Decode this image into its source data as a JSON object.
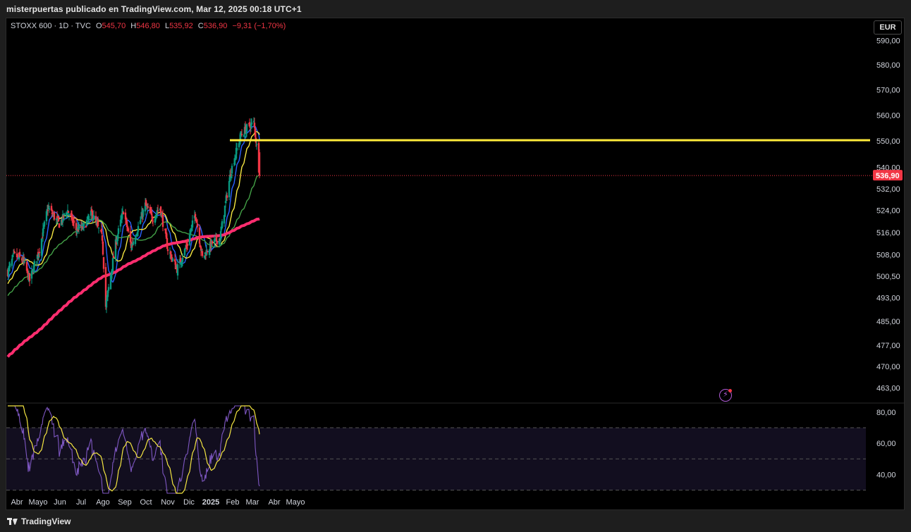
{
  "header": {
    "caption": "misterpuertas publicado en TradingView.com, Mar 12, 2025 00:18 UTC+1"
  },
  "legend": {
    "symbol": "STOXX 600 · 1D · TVC",
    "o_label": "O",
    "o_value": "545,70",
    "h_label": "H",
    "h_value": "546,80",
    "l_label": "L",
    "l_value": "535,92",
    "c_label": "C",
    "c_value": "536,90",
    "change": "−9,31 (−1,70%)"
  },
  "currency_button": "EUR",
  "footer": {
    "brand": "TradingView"
  },
  "flash_icon": "lightning-icon",
  "colors": {
    "up": "#089981",
    "down": "#f23645",
    "ma_fast": "#2962ff",
    "ma_mid": "#f5e642",
    "ma_slow": "#43a047",
    "ma_long": "#ff2d6f",
    "resistance": "#ffeb3b",
    "rsi": "#7e57c2",
    "rsi_ma": "#f5e642"
  },
  "chart_data": [
    {
      "type": "candlestick",
      "title": "",
      "x_axis_labels": [
        "Abr",
        "Mayo",
        "Jun",
        "Jul",
        "Ago",
        "Sep",
        "Oct",
        "Nov",
        "Dic",
        "2025",
        "Feb",
        "Mar",
        "Abr",
        "Mayo"
      ],
      "y_axis_labels": [
        "590,00",
        "580,00",
        "570,00",
        "560,00",
        "550,00",
        "540,00",
        "532,00",
        "524,00",
        "516,00",
        "508,00",
        "500,50",
        "493,00",
        "485,00",
        "477,00",
        "470,00",
        "463,00"
      ],
      "y_scale": "log",
      "ylim": [
        459,
        593
      ],
      "last_price_label": "536,90",
      "last_price": 536.9,
      "resistance_level": 550.3,
      "anchors": [
        [
          "2024-03-19",
          502
        ],
        [
          "2024-03-28",
          508
        ],
        [
          "2024-04-10",
          506
        ],
        [
          "2024-04-19",
          499
        ],
        [
          "2024-05-03",
          510
        ],
        [
          "2024-05-15",
          525
        ],
        [
          "2024-05-31",
          519
        ],
        [
          "2024-06-12",
          524
        ],
        [
          "2024-06-24",
          517
        ],
        [
          "2024-07-05",
          518
        ],
        [
          "2024-07-16",
          523
        ],
        [
          "2024-07-31",
          514
        ],
        [
          "2024-08-05",
          490
        ],
        [
          "2024-08-19",
          512
        ],
        [
          "2024-08-30",
          524
        ],
        [
          "2024-09-10",
          511
        ],
        [
          "2024-09-20",
          518
        ],
        [
          "2024-09-30",
          526
        ],
        [
          "2024-10-10",
          521
        ],
        [
          "2024-10-21",
          525
        ],
        [
          "2024-11-01",
          510
        ],
        [
          "2024-11-14",
          503
        ],
        [
          "2024-11-29",
          512
        ],
        [
          "2024-12-10",
          523
        ],
        [
          "2024-12-20",
          507
        ],
        [
          "2025-01-02",
          512
        ],
        [
          "2025-01-14",
          514
        ],
        [
          "2025-01-29",
          538
        ],
        [
          "2025-02-12",
          552
        ],
        [
          "2025-02-21",
          555
        ],
        [
          "2025-03-03",
          557
        ],
        [
          "2025-03-07",
          548
        ],
        [
          "2025-03-11",
          536.9
        ]
      ],
      "moving_averages": [
        {
          "period": 10,
          "color": "ma_fast"
        },
        {
          "period": 20,
          "color": "ma_mid"
        },
        {
          "period": 50,
          "color": "ma_slow"
        },
        {
          "period": 200,
          "color": "ma_long"
        }
      ]
    },
    {
      "type": "line",
      "title": "",
      "y_axis_labels": [
        "80,00",
        "60,00",
        "40,00"
      ],
      "ylim": [
        28,
        84
      ],
      "bands": [
        70,
        50,
        30
      ],
      "series": [
        {
          "color": "rsi"
        },
        {
          "color": "rsi_ma"
        }
      ]
    }
  ]
}
